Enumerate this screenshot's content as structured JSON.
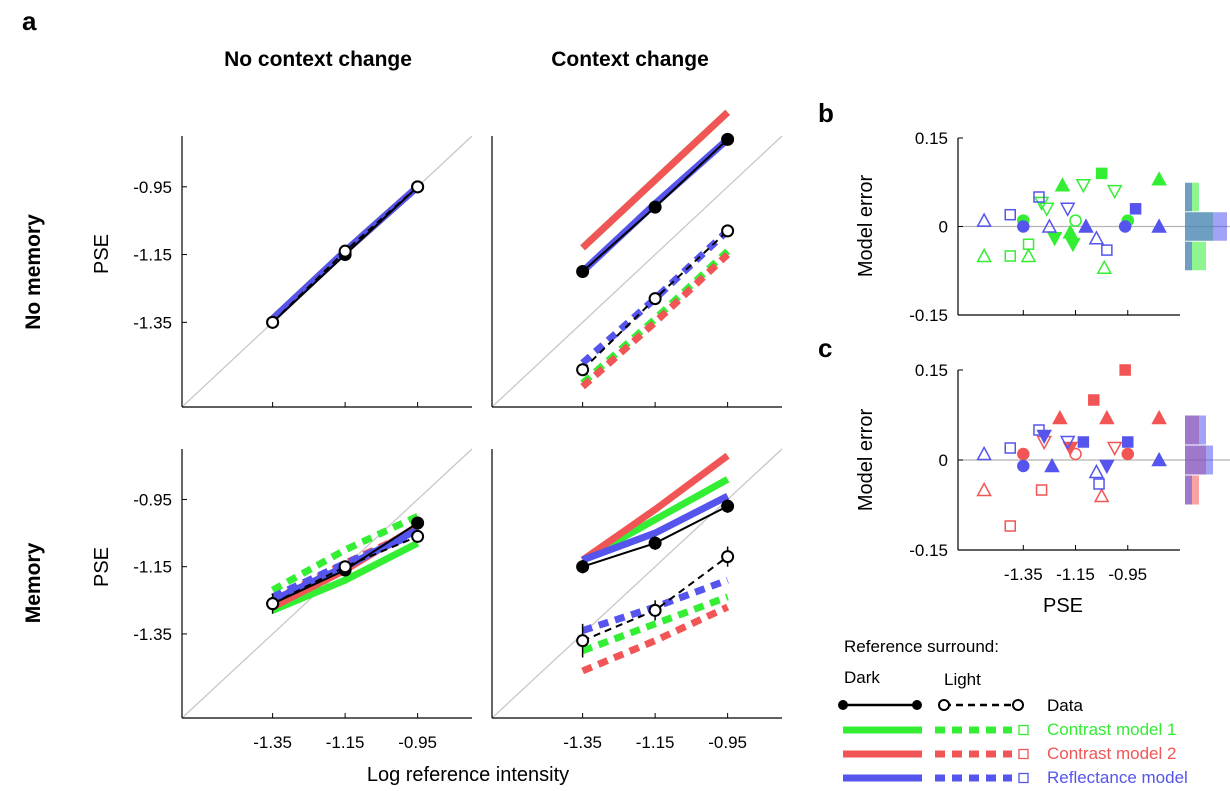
{
  "figure": {
    "panel_letters": {
      "a": "a",
      "b": "b",
      "c": "c"
    },
    "column_titles": [
      "No context change",
      "Context change"
    ],
    "row_titles": [
      "No memory",
      "Memory"
    ],
    "xlabel_main": "Log reference intensity",
    "ylabel_main": "PSE",
    "ylabel_error": "Model error",
    "xlabel_error": "PSE"
  },
  "colors": {
    "data": "#000000",
    "contrast1": "#33ee33",
    "contrast2": "#f25555",
    "reflectance": "#5555ee",
    "identity": "#c8c8c8",
    "zero": "#b4b4b4"
  },
  "legend": {
    "title": "Reference surround:",
    "dark": "Dark",
    "light": "Light",
    "entries": [
      {
        "key": "data",
        "label": "Data"
      },
      {
        "key": "contrast1",
        "label": "Contrast model 1"
      },
      {
        "key": "contrast2",
        "label": "Contrast model 2"
      },
      {
        "key": "reflectance",
        "label": "Reflectance model"
      }
    ]
  },
  "chart_data": [
    {
      "panel": "a",
      "type": "line",
      "title": "No context change / No memory",
      "x": [
        -1.35,
        -1.15,
        -0.95
      ],
      "xticks": [
        "-1.35",
        "-1.15",
        "-0.95"
      ],
      "yticks": [
        "-0.95",
        "-1.15",
        "-1.35"
      ],
      "xlim": [
        -1.6,
        -0.8
      ],
      "ylim": [
        -1.6,
        -0.8
      ],
      "series": [
        {
          "model": "data",
          "surround": "dark",
          "values": [
            -1.35,
            -1.15,
            -0.95
          ]
        },
        {
          "model": "data",
          "surround": "light",
          "values": [
            -1.35,
            -1.14,
            -0.95
          ]
        },
        {
          "model": "contrast1",
          "surround": "dark",
          "values": [
            -1.34,
            -1.14,
            -0.95
          ]
        },
        {
          "model": "contrast2",
          "surround": "dark",
          "values": [
            -1.34,
            -1.14,
            -0.95
          ]
        },
        {
          "model": "reflectance",
          "surround": "dark",
          "values": [
            -1.34,
            -1.14,
            -0.95
          ]
        }
      ]
    },
    {
      "panel": "a",
      "type": "line",
      "title": "Context change / No memory",
      "x": [
        -1.35,
        -1.15,
        -0.95
      ],
      "xticks": [
        "-1.35",
        "-1.15",
        "-0.95"
      ],
      "xlim": [
        -1.6,
        -0.8
      ],
      "ylim": [
        -1.6,
        -0.8
      ],
      "series": [
        {
          "model": "data",
          "surround": "dark",
          "values": [
            -1.2,
            -1.01,
            -0.81
          ]
        },
        {
          "model": "data",
          "surround": "light",
          "values": [
            -1.49,
            -1.28,
            -1.08
          ]
        },
        {
          "model": "contrast1",
          "surround": "dark",
          "values": [
            -1.13,
            -0.93,
            -0.73
          ]
        },
        {
          "model": "contrast2",
          "surround": "dark",
          "values": [
            -1.13,
            -0.93,
            -0.73
          ]
        },
        {
          "model": "reflectance",
          "surround": "dark",
          "values": [
            -1.2,
            -1.0,
            -0.81
          ]
        },
        {
          "model": "contrast1",
          "surround": "light",
          "values": [
            -1.53,
            -1.34,
            -1.14
          ]
        },
        {
          "model": "contrast2",
          "surround": "light",
          "values": [
            -1.54,
            -1.35,
            -1.15
          ]
        },
        {
          "model": "reflectance",
          "surround": "light",
          "values": [
            -1.47,
            -1.28,
            -1.08
          ]
        }
      ]
    },
    {
      "panel": "a",
      "type": "line",
      "title": "No context change / Memory",
      "x": [
        -1.35,
        -1.15,
        -0.95
      ],
      "xticks": [
        "-1.35",
        "-1.15",
        "-0.95"
      ],
      "yticks": [
        "-0.95",
        "-1.15",
        "-1.35"
      ],
      "xlim": [
        -1.6,
        -0.8
      ],
      "ylim": [
        -1.6,
        -0.8
      ],
      "series": [
        {
          "model": "data",
          "surround": "dark",
          "values": [
            -1.26,
            -1.16,
            -1.02
          ],
          "err": [
            0.03,
            0.01,
            0.01
          ]
        },
        {
          "model": "data",
          "surround": "light",
          "values": [
            -1.26,
            -1.15,
            -1.06
          ],
          "err": [
            0.02,
            0.01,
            0.01
          ]
        },
        {
          "model": "contrast1",
          "surround": "dark",
          "values": [
            -1.28,
            -1.19,
            -1.08
          ]
        },
        {
          "model": "contrast2",
          "surround": "dark",
          "values": [
            -1.27,
            -1.16,
            -1.03
          ]
        },
        {
          "model": "reflectance",
          "surround": "dark",
          "values": [
            -1.25,
            -1.15,
            -1.04
          ]
        },
        {
          "model": "contrast1",
          "surround": "light",
          "values": [
            -1.22,
            -1.1,
            -1.0
          ]
        },
        {
          "model": "contrast2",
          "surround": "light",
          "values": [
            -1.25,
            -1.14,
            -1.04
          ]
        },
        {
          "model": "reflectance",
          "surround": "light",
          "values": [
            -1.24,
            -1.14,
            -1.05
          ]
        }
      ]
    },
    {
      "panel": "a",
      "type": "line",
      "title": "Context change / Memory",
      "x": [
        -1.35,
        -1.15,
        -0.95
      ],
      "xticks": [
        "-1.35",
        "-1.15",
        "-0.95"
      ],
      "xlim": [
        -1.6,
        -0.8
      ],
      "ylim": [
        -1.6,
        -0.8
      ],
      "series": [
        {
          "model": "data",
          "surround": "dark",
          "values": [
            -1.15,
            -1.08,
            -0.97
          ],
          "err": [
            0.02,
            0.02,
            0.02
          ]
        },
        {
          "model": "data",
          "surround": "light",
          "values": [
            -1.37,
            -1.28,
            -1.12
          ],
          "err": [
            0.05,
            0.03,
            0.03
          ]
        },
        {
          "model": "contrast1",
          "surround": "dark",
          "values": [
            -1.13,
            -1.01,
            -0.89
          ]
        },
        {
          "model": "contrast2",
          "surround": "dark",
          "values": [
            -1.13,
            -0.98,
            -0.82
          ]
        },
        {
          "model": "reflectance",
          "surround": "dark",
          "values": [
            -1.13,
            -1.05,
            -0.94
          ]
        },
        {
          "model": "contrast1",
          "surround": "light",
          "values": [
            -1.4,
            -1.32,
            -1.24
          ]
        },
        {
          "model": "contrast2",
          "surround": "light",
          "values": [
            -1.46,
            -1.37,
            -1.27
          ]
        },
        {
          "model": "reflectance",
          "surround": "light",
          "values": [
            -1.34,
            -1.27,
            -1.19
          ]
        }
      ]
    },
    {
      "panel": "b",
      "type": "scatter",
      "xlabel": "PSE",
      "ylabel": "Model error",
      "xlim": [
        -1.6,
        -0.75
      ],
      "ylim": [
        -0.15,
        0.15
      ],
      "yticks": [
        "0.15",
        "0",
        "-0.15"
      ],
      "points": [
        {
          "x": -1.5,
          "y": -0.05,
          "model": "contrast1",
          "shape": "tri-up",
          "filled": false
        },
        {
          "x": -1.4,
          "y": -0.05,
          "model": "contrast1",
          "shape": "square",
          "filled": false
        },
        {
          "x": -1.33,
          "y": -0.05,
          "model": "contrast1",
          "shape": "tri-up",
          "filled": false
        },
        {
          "x": -1.33,
          "y": -0.03,
          "model": "contrast1",
          "shape": "square",
          "filled": false
        },
        {
          "x": -1.35,
          "y": 0.01,
          "model": "contrast1",
          "shape": "circle",
          "filled": true
        },
        {
          "x": -1.28,
          "y": 0.04,
          "model": "contrast1",
          "shape": "tri-down",
          "filled": false
        },
        {
          "x": -1.26,
          "y": 0.03,
          "model": "contrast1",
          "shape": "tri-down",
          "filled": false
        },
        {
          "x": -1.23,
          "y": -0.02,
          "model": "contrast1",
          "shape": "tri-down",
          "filled": true
        },
        {
          "x": -1.2,
          "y": 0.07,
          "model": "contrast1",
          "shape": "tri-up",
          "filled": true
        },
        {
          "x": -1.17,
          "y": -0.01,
          "model": "contrast1",
          "shape": "tri-up",
          "filled": true
        },
        {
          "x": -1.16,
          "y": -0.03,
          "model": "contrast1",
          "shape": "tri-down",
          "filled": true
        },
        {
          "x": -1.15,
          "y": 0.01,
          "model": "contrast1",
          "shape": "circle",
          "filled": false
        },
        {
          "x": -1.12,
          "y": 0.07,
          "model": "contrast1",
          "shape": "tri-down",
          "filled": false
        },
        {
          "x": -1.05,
          "y": 0.09,
          "model": "contrast1",
          "shape": "square",
          "filled": true
        },
        {
          "x": -1.04,
          "y": -0.07,
          "model": "contrast1",
          "shape": "tri-up",
          "filled": false
        },
        {
          "x": -1.0,
          "y": 0.06,
          "model": "contrast1",
          "shape": "tri-down",
          "filled": false
        },
        {
          "x": -0.95,
          "y": 0.01,
          "model": "contrast1",
          "shape": "circle",
          "filled": true
        },
        {
          "x": -0.83,
          "y": 0.08,
          "model": "contrast1",
          "shape": "tri-up",
          "filled": true
        },
        {
          "x": -1.5,
          "y": 0.01,
          "model": "reflectance",
          "shape": "tri-up",
          "filled": false
        },
        {
          "x": -1.4,
          "y": 0.02,
          "model": "reflectance",
          "shape": "square",
          "filled": false
        },
        {
          "x": -1.35,
          "y": 0.0,
          "model": "reflectance",
          "shape": "circle",
          "filled": true
        },
        {
          "x": -1.29,
          "y": 0.05,
          "model": "reflectance",
          "shape": "square",
          "filled": false
        },
        {
          "x": -1.25,
          "y": 0.0,
          "model": "reflectance",
          "shape": "tri-up",
          "filled": false
        },
        {
          "x": -1.18,
          "y": 0.03,
          "model": "reflectance",
          "shape": "tri-down",
          "filled": false
        },
        {
          "x": -1.11,
          "y": 0.0,
          "model": "reflectance",
          "shape": "tri-up",
          "filled": true
        },
        {
          "x": -1.07,
          "y": -0.02,
          "model": "reflectance",
          "shape": "tri-up",
          "filled": false
        },
        {
          "x": -1.03,
          "y": -0.04,
          "model": "reflectance",
          "shape": "square",
          "filled": false
        },
        {
          "x": -0.96,
          "y": 0.0,
          "model": "reflectance",
          "shape": "circle",
          "filled": true
        },
        {
          "x": -0.92,
          "y": 0.03,
          "model": "reflectance",
          "shape": "square",
          "filled": true
        },
        {
          "x": -0.83,
          "y": 0.0,
          "model": "reflectance",
          "shape": "tri-up",
          "filled": true
        }
      ],
      "histogram": [
        {
          "model": "contrast1",
          "y": 0.05,
          "count": 2
        },
        {
          "model": "contrast1",
          "y": 0.0,
          "count": 4
        },
        {
          "model": "contrast1",
          "y": -0.05,
          "count": 3
        },
        {
          "model": "reflectance",
          "y": 0.05,
          "count": 1
        },
        {
          "model": "reflectance",
          "y": 0.0,
          "count": 6
        },
        {
          "model": "reflectance",
          "y": -0.05,
          "count": 1
        }
      ]
    },
    {
      "panel": "c",
      "type": "scatter",
      "xlabel": "PSE",
      "ylabel": "Model error",
      "xticks": [
        "-1.35",
        "-1.15",
        "-0.95"
      ],
      "xlim": [
        -1.6,
        -0.75
      ],
      "ylim": [
        -0.15,
        0.15
      ],
      "yticks": [
        "0.15",
        "0",
        "-0.15"
      ],
      "points": [
        {
          "x": -1.5,
          "y": -0.05,
          "model": "contrast2",
          "shape": "tri-up",
          "filled": false
        },
        {
          "x": -1.4,
          "y": -0.11,
          "model": "contrast2",
          "shape": "square",
          "filled": false
        },
        {
          "x": -1.35,
          "y": 0.01,
          "model": "contrast2",
          "shape": "circle",
          "filled": true
        },
        {
          "x": -1.28,
          "y": -0.05,
          "model": "contrast2",
          "shape": "square",
          "filled": false
        },
        {
          "x": -1.27,
          "y": 0.03,
          "model": "contrast2",
          "shape": "tri-down",
          "filled": false
        },
        {
          "x": -1.21,
          "y": 0.07,
          "model": "contrast2",
          "shape": "tri-up",
          "filled": true
        },
        {
          "x": -1.17,
          "y": 0.02,
          "model": "contrast2",
          "shape": "tri-down",
          "filled": true
        },
        {
          "x": -1.15,
          "y": 0.01,
          "model": "contrast2",
          "shape": "circle",
          "filled": false
        },
        {
          "x": -1.08,
          "y": 0.1,
          "model": "contrast2",
          "shape": "square",
          "filled": true
        },
        {
          "x": -1.05,
          "y": -0.06,
          "model": "contrast2",
          "shape": "tri-up",
          "filled": false
        },
        {
          "x": -1.03,
          "y": 0.07,
          "model": "contrast2",
          "shape": "tri-up",
          "filled": true
        },
        {
          "x": -1.0,
          "y": 0.02,
          "model": "contrast2",
          "shape": "tri-down",
          "filled": false
        },
        {
          "x": -0.96,
          "y": 0.15,
          "model": "contrast2",
          "shape": "square",
          "filled": true
        },
        {
          "x": -0.95,
          "y": 0.01,
          "model": "contrast2",
          "shape": "circle",
          "filled": true
        },
        {
          "x": -0.83,
          "y": 0.07,
          "model": "contrast2",
          "shape": "tri-up",
          "filled": true
        },
        {
          "x": -1.5,
          "y": 0.01,
          "model": "reflectance",
          "shape": "tri-up",
          "filled": false
        },
        {
          "x": -1.4,
          "y": 0.02,
          "model": "reflectance",
          "shape": "square",
          "filled": false
        },
        {
          "x": -1.35,
          "y": -0.01,
          "model": "reflectance",
          "shape": "circle",
          "filled": true
        },
        {
          "x": -1.29,
          "y": 0.05,
          "model": "reflectance",
          "shape": "square",
          "filled": false
        },
        {
          "x": -1.27,
          "y": 0.04,
          "model": "reflectance",
          "shape": "tri-down",
          "filled": true
        },
        {
          "x": -1.24,
          "y": -0.01,
          "model": "reflectance",
          "shape": "tri-up",
          "filled": true
        },
        {
          "x": -1.18,
          "y": 0.03,
          "model": "reflectance",
          "shape": "tri-down",
          "filled": false
        },
        {
          "x": -1.12,
          "y": 0.03,
          "model": "reflectance",
          "shape": "square",
          "filled": true
        },
        {
          "x": -1.07,
          "y": -0.02,
          "model": "reflectance",
          "shape": "tri-up",
          "filled": false
        },
        {
          "x": -1.06,
          "y": -0.04,
          "model": "reflectance",
          "shape": "square",
          "filled": false
        },
        {
          "x": -1.03,
          "y": -0.01,
          "model": "reflectance",
          "shape": "tri-down",
          "filled": true
        },
        {
          "x": -0.95,
          "y": 0.03,
          "model": "reflectance",
          "shape": "square",
          "filled": true
        },
        {
          "x": -0.83,
          "y": 0.0,
          "model": "reflectance",
          "shape": "tri-up",
          "filled": true
        }
      ],
      "histogram": [
        {
          "model": "contrast2",
          "y": 0.05,
          "count": 2
        },
        {
          "model": "contrast2",
          "y": 0.0,
          "count": 3
        },
        {
          "model": "contrast2",
          "y": -0.05,
          "count": 2
        },
        {
          "model": "reflectance",
          "y": 0.05,
          "count": 3
        },
        {
          "model": "reflectance",
          "y": 0.0,
          "count": 4
        },
        {
          "model": "reflectance",
          "y": -0.05,
          "count": 1
        }
      ]
    }
  ]
}
